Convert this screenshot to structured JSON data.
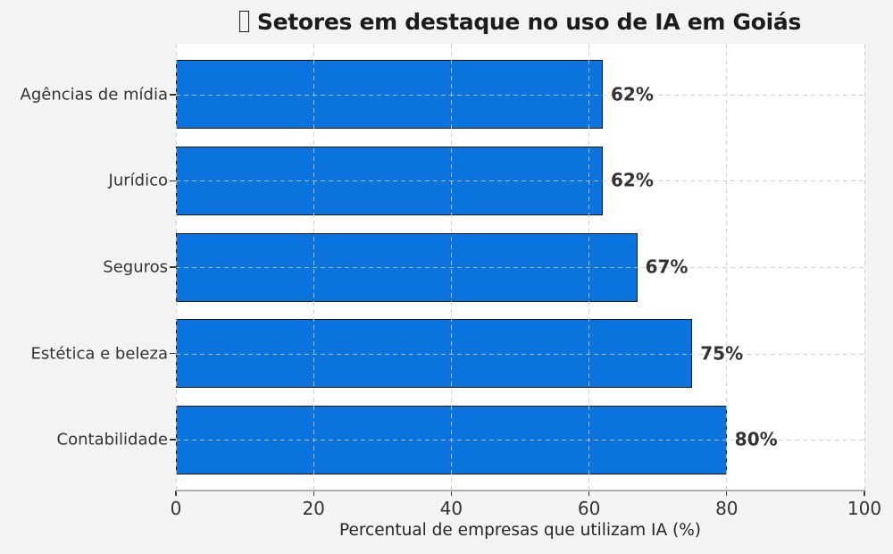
{
  "title": {
    "icon": "missing-emoji-tofu",
    "text": "Setores em destaque no uso de IA em Goiás"
  },
  "chart_data": {
    "type": "bar",
    "orientation": "horizontal",
    "title": "Setores em destaque no uso de IA em Goiás",
    "categories": [
      "Agências de mídia",
      "Jurídico",
      "Seguros",
      "Estética e beleza",
      "Contabilidade"
    ],
    "values": [
      62,
      62,
      67,
      75,
      80
    ],
    "value_labels": [
      "62%",
      "62%",
      "67%",
      "75%",
      "80%"
    ],
    "xlabel": "Percentual de empresas que utilizam IA (%)",
    "ylabel": "",
    "xlim": [
      0,
      100
    ],
    "xticks": [
      "0",
      "20",
      "40",
      "60",
      "80",
      "100"
    ],
    "xtick_values": [
      0,
      20,
      40,
      60,
      80,
      100
    ],
    "grid": true,
    "grid_style": "dashed",
    "legend": "none",
    "colors": {
      "bar_fill": "#0a73dd",
      "bar_edge": "#161616",
      "figure_background": "#f3f3f3",
      "plot_background": "#ffffff",
      "gridline": "#cacaca",
      "text": "#333333",
      "title_text": "#1c1c1c"
    }
  }
}
